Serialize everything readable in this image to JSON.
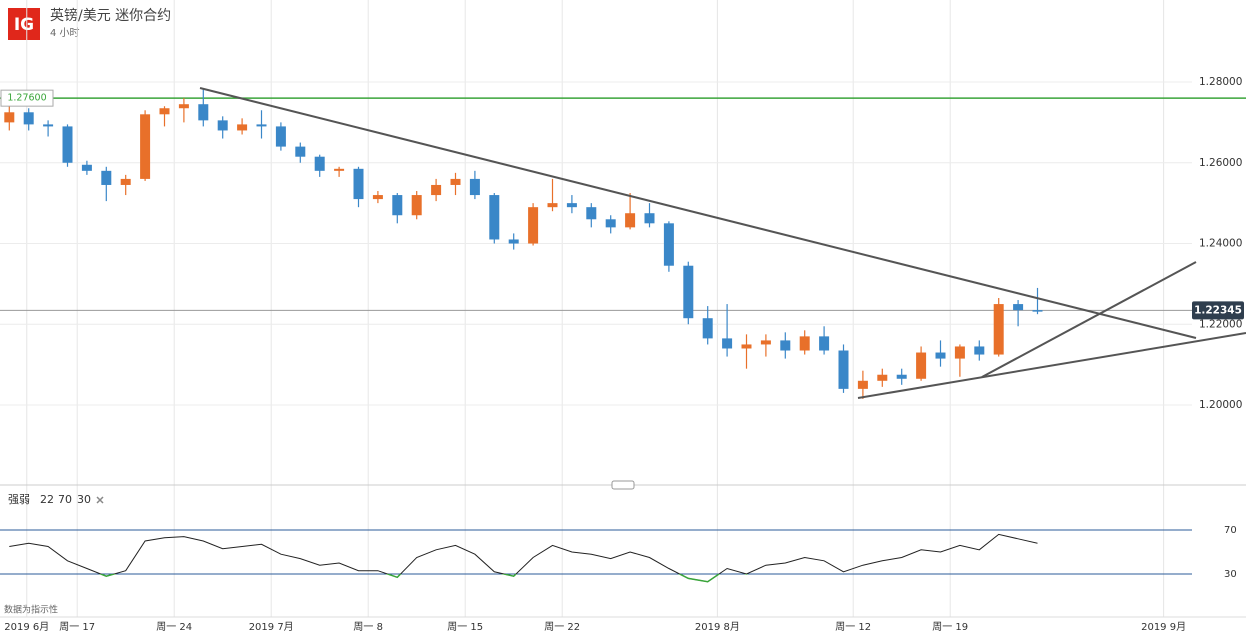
{
  "header": {
    "logo": "IG",
    "title": "英镑/美元 迷你合约",
    "interval": "4 小时"
  },
  "chart_data": {
    "type": "candlestick",
    "categories": [
      null,
      null,
      null,
      null,
      null,
      null,
      null,
      null,
      null,
      null,
      null,
      null,
      null,
      null,
      null,
      null,
      null,
      null,
      null,
      null,
      null,
      null,
      null,
      null,
      null,
      null,
      null,
      null,
      null,
      null,
      null,
      null,
      null,
      null,
      null,
      null,
      null,
      null,
      null,
      null,
      null,
      null,
      null,
      null,
      null,
      null,
      null,
      null,
      null,
      null,
      null,
      null,
      null,
      null
    ],
    "open": [
      1.27,
      1.2725,
      1.2695,
      1.269,
      1.2595,
      1.258,
      1.2545,
      1.256,
      1.272,
      1.2735,
      1.2745,
      1.2705,
      1.268,
      1.2695,
      1.269,
      1.264,
      1.2615,
      1.258,
      1.2585,
      1.251,
      1.252,
      1.247,
      1.252,
      1.2545,
      1.256,
      1.252,
      1.241,
      1.24,
      1.249,
      1.25,
      1.249,
      1.246,
      1.244,
      1.2475,
      1.245,
      1.2345,
      1.2215,
      1.2165,
      1.214,
      1.215,
      1.216,
      1.2135,
      1.217,
      1.2135,
      1.204,
      1.206,
      1.2075,
      1.2065,
      1.213,
      1.2115,
      1.2145,
      1.2125,
      1.225,
      1.2235
    ],
    "high": [
      1.2745,
      1.2735,
      1.2705,
      1.2695,
      1.2605,
      1.259,
      1.257,
      1.273,
      1.274,
      1.276,
      1.2785,
      1.2715,
      1.271,
      1.273,
      1.27,
      1.265,
      1.262,
      1.259,
      1.259,
      1.253,
      1.2525,
      1.253,
      1.256,
      1.2575,
      1.258,
      1.2525,
      1.2425,
      1.25,
      1.256,
      1.252,
      1.25,
      1.247,
      1.2525,
      1.25,
      1.2455,
      1.2355,
      1.2245,
      1.225,
      1.2175,
      1.2175,
      1.218,
      1.2185,
      1.2195,
      1.215,
      1.2085,
      1.209,
      1.209,
      1.2145,
      1.216,
      1.215,
      1.216,
      1.2265,
      1.226,
      1.229
    ],
    "low": [
      1.268,
      1.268,
      1.2665,
      1.259,
      1.257,
      1.2505,
      1.252,
      1.2555,
      1.269,
      1.27,
      1.269,
      1.266,
      1.267,
      1.266,
      1.263,
      1.26,
      1.2565,
      1.2565,
      1.249,
      1.25,
      1.245,
      1.246,
      1.2505,
      1.252,
      1.251,
      1.24,
      1.2385,
      1.2395,
      1.248,
      1.2475,
      1.244,
      1.2425,
      1.2435,
      1.244,
      1.233,
      1.22,
      1.215,
      1.212,
      1.209,
      1.212,
      1.2115,
      1.2125,
      1.2125,
      1.203,
      1.2015,
      1.2045,
      1.205,
      1.206,
      1.2095,
      1.207,
      1.211,
      1.212,
      1.2195,
      1.2225
    ],
    "close": [
      1.2725,
      1.2695,
      1.269,
      1.26,
      1.258,
      1.2545,
      1.256,
      1.272,
      1.2735,
      1.2745,
      1.2705,
      1.268,
      1.2695,
      1.269,
      1.264,
      1.2615,
      1.258,
      1.2585,
      1.251,
      1.252,
      1.247,
      1.252,
      1.2545,
      1.256,
      1.252,
      1.241,
      1.24,
      1.249,
      1.25,
      1.249,
      1.246,
      1.244,
      1.2475,
      1.245,
      1.2345,
      1.2215,
      1.2165,
      1.214,
      1.215,
      1.216,
      1.2135,
      1.217,
      1.2135,
      1.204,
      1.206,
      1.2075,
      1.2065,
      1.213,
      1.2115,
      1.2145,
      1.2125,
      1.225,
      1.2235,
      1.22345
    ],
    "up_color": "#e8702a",
    "down_color": "#3a87c8",
    "ylim": [
      1.18019,
      1.30031
    ],
    "yticks": [
      {
        "value": 1.28,
        "label": "1.28000"
      },
      {
        "value": 1.26,
        "label": "1.26000"
      },
      {
        "value": 1.24,
        "label": "1.24000"
      },
      {
        "value": 1.22,
        "label": "1.22000"
      },
      {
        "value": 1.2,
        "label": "1.20000"
      }
    ],
    "xticks": [
      {
        "value": 1.4,
        "label": "2019 6月"
      },
      {
        "value": 4,
        "label": "周一 17"
      },
      {
        "value": 9,
        "label": "周一 24"
      },
      {
        "value": 14,
        "label": "2019 7月"
      },
      {
        "value": 19,
        "label": "周一 8"
      },
      {
        "value": 24,
        "label": "周一 15"
      },
      {
        "value": 29,
        "label": "周一 22"
      },
      {
        "value": 37,
        "label": "2019 8月"
      },
      {
        "value": 44,
        "label": "周一 12"
      },
      {
        "value": 49,
        "label": "周一 19"
      },
      {
        "value": 60,
        "label": "2019 9月"
      }
    ],
    "hline": {
      "value": 1.276,
      "label": "1.27600",
      "color": "#3aa53a"
    },
    "last_price": {
      "value": 1.22345,
      "label": "1.22345"
    },
    "rsi": {
      "name": "强弱",
      "params": [
        22,
        70,
        30
      ],
      "values": [
        55,
        58,
        55,
        42,
        35,
        28,
        33,
        60,
        63,
        64,
        60,
        53,
        55,
        57,
        48,
        44,
        38,
        40,
        33,
        33,
        27,
        45,
        52,
        56,
        48,
        32,
        28,
        45,
        56,
        50,
        48,
        44,
        50,
        45,
        35,
        26,
        23,
        35,
        30,
        38,
        40,
        45,
        42,
        32,
        38,
        42,
        45,
        52,
        50,
        56,
        52,
        66,
        62,
        58
      ],
      "ylim": [
        1.8,
        106.4
      ],
      "yticks": [
        30,
        70
      ],
      "color": "#222",
      "low_color": "#3aa53a",
      "band_color": "#2b5b9a"
    },
    "footer": "数据为指示性"
  }
}
